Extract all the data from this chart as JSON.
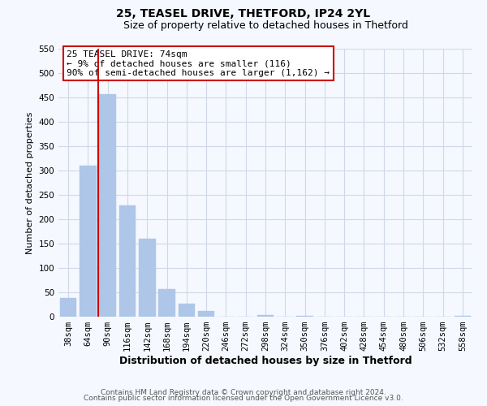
{
  "title1": "25, TEASEL DRIVE, THETFORD, IP24 2YL",
  "title2": "Size of property relative to detached houses in Thetford",
  "xlabel": "Distribution of detached houses by size in Thetford",
  "ylabel": "Number of detached properties",
  "bar_labels": [
    "38sqm",
    "64sqm",
    "90sqm",
    "116sqm",
    "142sqm",
    "168sqm",
    "194sqm",
    "220sqm",
    "246sqm",
    "272sqm",
    "298sqm",
    "324sqm",
    "350sqm",
    "376sqm",
    "402sqm",
    "428sqm",
    "454sqm",
    "480sqm",
    "506sqm",
    "532sqm",
    "558sqm"
  ],
  "bar_values": [
    38,
    310,
    456,
    228,
    160,
    57,
    26,
    12,
    0,
    0,
    3,
    0,
    2,
    0,
    0,
    0,
    0,
    0,
    0,
    0,
    2
  ],
  "bar_color": "#aec6e8",
  "bar_edge_color": "#aec6e8",
  "grid_color": "#d0d8e8",
  "background_color": "#f5f8ff",
  "vline_color": "#cc0000",
  "vline_x": 1.5,
  "annotation_title": "25 TEASEL DRIVE: 74sqm",
  "annotation_line1": "← 9% of detached houses are smaller (116)",
  "annotation_line2": "90% of semi-detached houses are larger (1,162) →",
  "annotation_box_facecolor": "#ffffff",
  "annotation_box_edgecolor": "#cc0000",
  "ylim": [
    0,
    550
  ],
  "yticks": [
    0,
    50,
    100,
    150,
    200,
    250,
    300,
    350,
    400,
    450,
    500,
    550
  ],
  "footer1": "Contains HM Land Registry data © Crown copyright and database right 2024.",
  "footer2": "Contains public sector information licensed under the Open Government Licence v3.0.",
  "title1_fontsize": 10,
  "title2_fontsize": 9,
  "xlabel_fontsize": 9,
  "ylabel_fontsize": 8,
  "tick_fontsize": 7.5,
  "footer_fontsize": 6.5,
  "annotation_fontsize": 8
}
